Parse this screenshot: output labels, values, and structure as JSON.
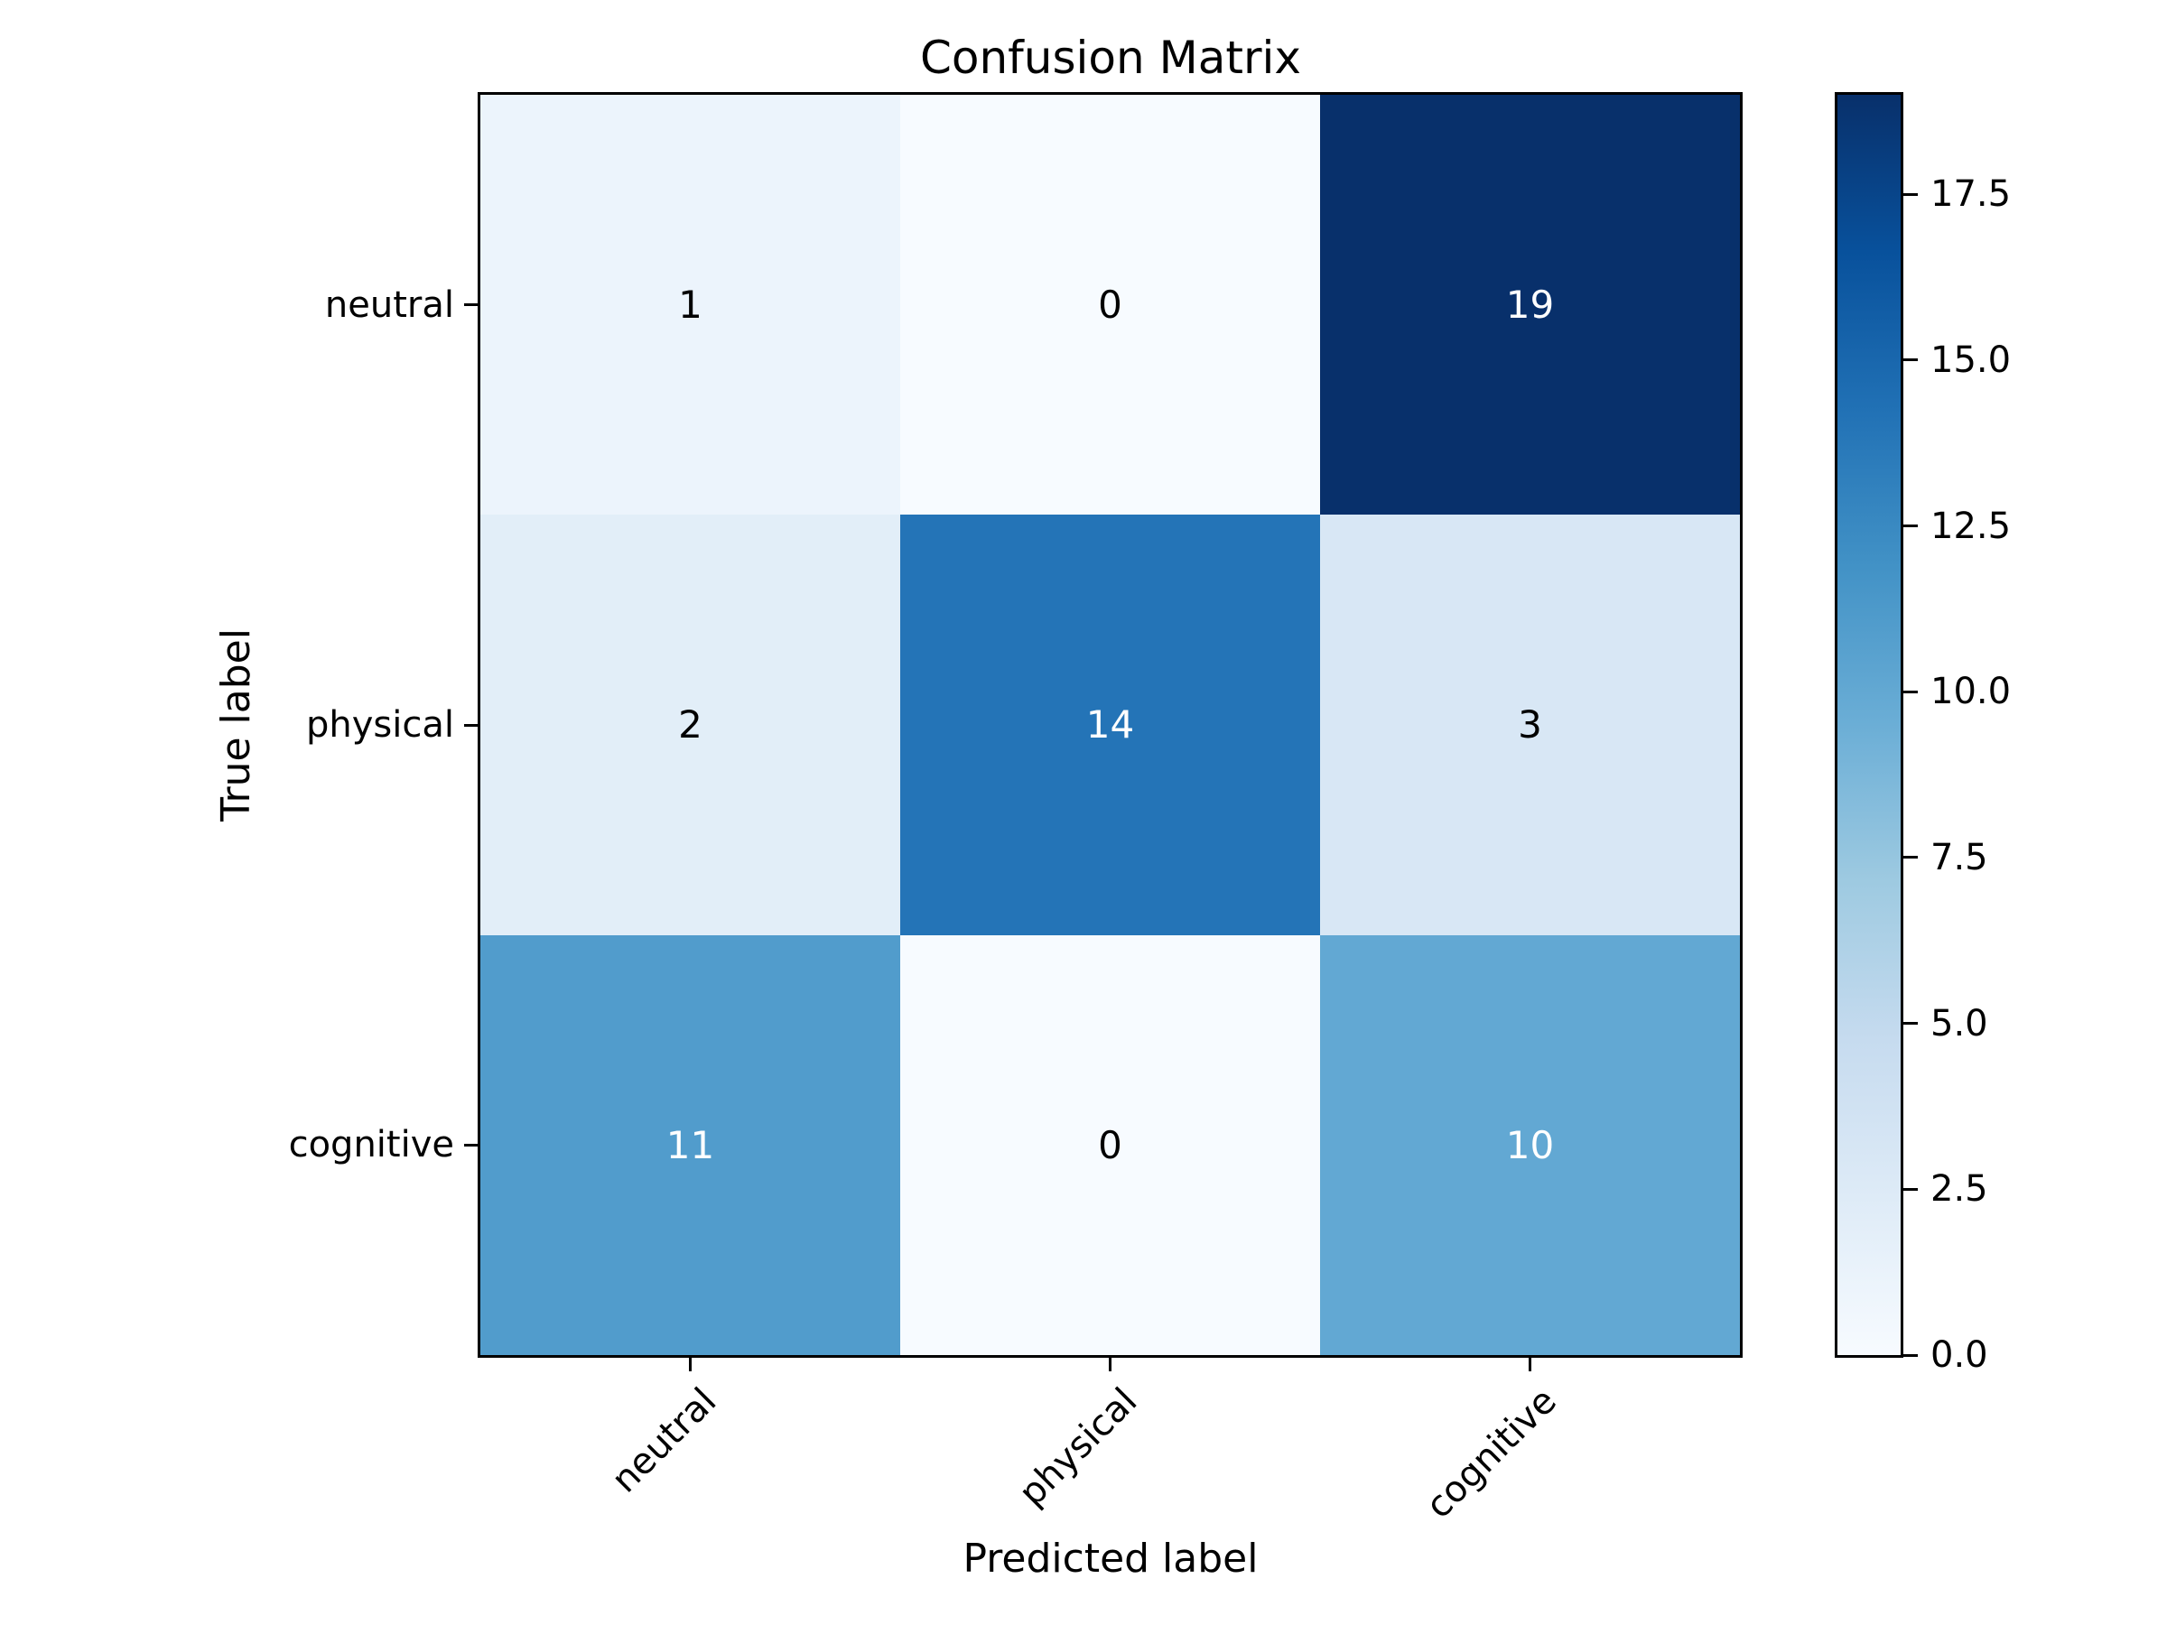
{
  "chart_data": {
    "type": "heatmap",
    "title": "Confusion Matrix",
    "xlabel": "Predicted label",
    "ylabel": "True label",
    "x_categories": [
      "neutral",
      "physical",
      "cognitive"
    ],
    "y_categories": [
      "neutral",
      "physical",
      "cognitive"
    ],
    "matrix": [
      [
        1,
        0,
        19
      ],
      [
        2,
        14,
        3
      ],
      [
        11,
        0,
        10
      ]
    ],
    "vmin": 0,
    "vmax": 19,
    "colormap_name": "Blues",
    "colormap_stops": [
      {
        "frac": 0.0,
        "color": "#f7fbff"
      },
      {
        "frac": 0.125,
        "color": "#deebf7"
      },
      {
        "frac": 0.25,
        "color": "#c6dbef"
      },
      {
        "frac": 0.375,
        "color": "#9ecae1"
      },
      {
        "frac": 0.5,
        "color": "#6baed6"
      },
      {
        "frac": 0.625,
        "color": "#4292c6"
      },
      {
        "frac": 0.75,
        "color": "#2171b5"
      },
      {
        "frac": 0.875,
        "color": "#08519c"
      },
      {
        "frac": 1.0,
        "color": "#08306b"
      }
    ],
    "annotation_text_threshold": 9.5,
    "annotation_colors": {
      "dark_cell_text": "#ffffff",
      "light_cell_text": "#000000"
    },
    "axis_color": "#000000",
    "background_color": "#ffffff",
    "colorbar_tick_labels": [
      "0.0",
      "2.5",
      "5.0",
      "7.5",
      "10.0",
      "12.5",
      "15.0",
      "17.5"
    ],
    "colorbar_tick_values": [
      0,
      2.5,
      5,
      7.5,
      10,
      12.5,
      15,
      17.5
    ],
    "colorbar_position": "right",
    "grid": false
  }
}
